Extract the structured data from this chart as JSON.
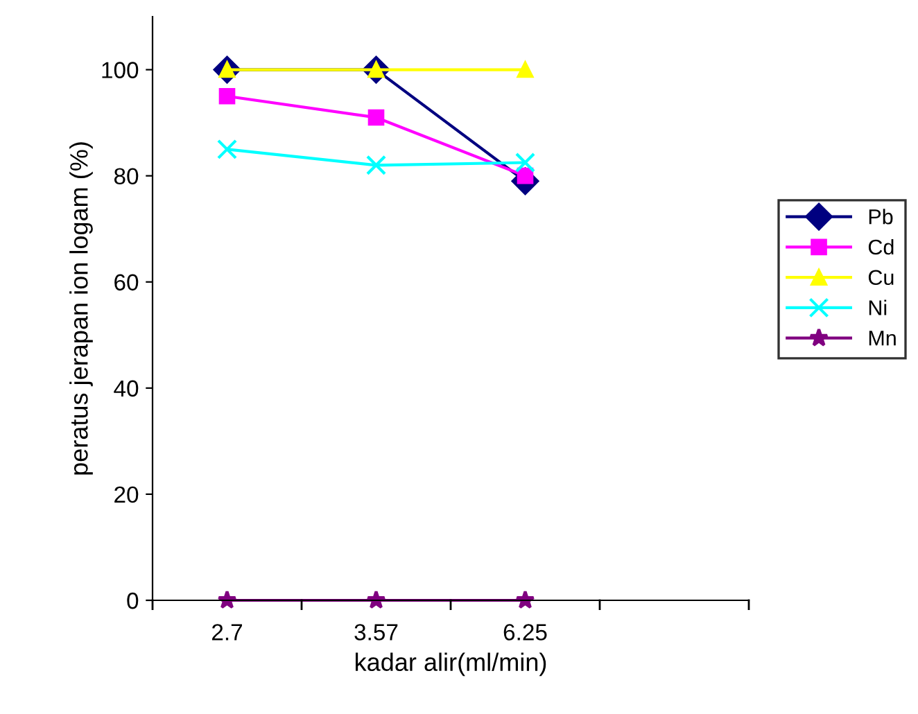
{
  "chart_data": {
    "type": "line",
    "xlabel": "kadar alir(ml/min)",
    "ylabel": "peratus jerapan ion logam (%)",
    "categories": [
      "2.7",
      "3.57",
      "6.25",
      null
    ],
    "series": [
      {
        "name": "Pb",
        "color": "#000080",
        "marker": "diamond",
        "values": [
          100,
          100,
          79,
          null
        ]
      },
      {
        "name": "Cd",
        "color": "#ff00ff",
        "marker": "square",
        "values": [
          95,
          91,
          80,
          null
        ]
      },
      {
        "name": "Cu",
        "color": "#ffff00",
        "marker": "triangle",
        "values": [
          100,
          100,
          100,
          null
        ]
      },
      {
        "name": "Ni",
        "color": "#00ffff",
        "marker": "cross",
        "values": [
          85,
          82,
          82.5,
          null
        ]
      },
      {
        "name": "Mn",
        "color": "#800080",
        "marker": "star",
        "values": [
          0,
          0,
          0,
          null
        ]
      }
    ],
    "ylim": [
      0,
      110
    ],
    "yticks": [
      0,
      20,
      40,
      60,
      80,
      100
    ],
    "grid": false,
    "legend": "right",
    "line_style": "solid"
  }
}
